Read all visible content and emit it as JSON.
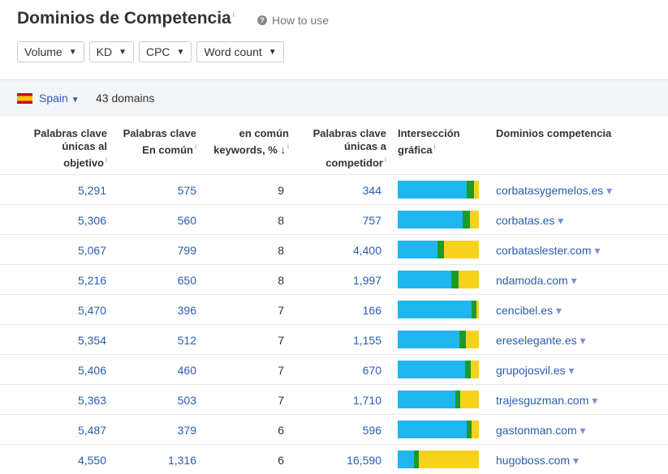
{
  "header": {
    "title": "Dominios de Competencia",
    "help": "How to use"
  },
  "filters": [
    "Volume",
    "KD",
    "CPC",
    "Word count"
  ],
  "country": "Spain",
  "domain_count": "43 domains",
  "table": {
    "columns": [
      "Palabras clave únicas al objetivo",
      "Palabras clave En común",
      "en común keywords, %",
      "Palabras clave únicas a competidor",
      "Intersección gráfica",
      "Dominios competencia"
    ],
    "rows": [
      {
        "target": {
          "value": 5291,
          "label": "5,291"
        },
        "common": 575,
        "percent": 9,
        "competitor": 344,
        "domain": "corbatasygemelos.es"
      },
      {
        "target": {
          "value": 5306,
          "label": "5,306"
        },
        "common": 560,
        "percent": 8,
        "competitor": 757,
        "domain": "corbatas.es"
      },
      {
        "target": {
          "value": 5067,
          "label": "5,067"
        },
        "common": 799,
        "percent": 8,
        "competitor": {
          "value": 4400,
          "label": "4,400"
        },
        "domain": "corbataslester.com"
      },
      {
        "target": {
          "value": 5216,
          "label": "5,216"
        },
        "common": 650,
        "percent": 8,
        "competitor": {
          "value": 1997,
          "label": "1,997"
        },
        "domain": "ndamoda.com"
      },
      {
        "target": {
          "value": 5470,
          "label": "5,470"
        },
        "common": 396,
        "percent": 7,
        "competitor": 166,
        "domain": "cencibel.es"
      },
      {
        "target": {
          "value": 5354,
          "label": "5,354"
        },
        "common": 512,
        "percent": 7,
        "competitor": {
          "value": 1155,
          "label": "1,155"
        },
        "domain": "ereselegante.es"
      },
      {
        "target": {
          "value": 5406,
          "label": "5,406"
        },
        "common": 460,
        "percent": 7,
        "competitor": 670,
        "domain": "grupojosvil.es"
      },
      {
        "target": {
          "value": 5363,
          "label": "5,363"
        },
        "common": 503,
        "percent": 7,
        "competitor": {
          "value": 1710,
          "label": "1,710"
        },
        "domain": "trajesguzman.com"
      },
      {
        "target": {
          "value": 5487,
          "label": "5,487"
        },
        "common": 379,
        "percent": 6,
        "competitor": 596,
        "domain": "gastonman.com"
      },
      {
        "target": {
          "value": 4550,
          "label": "4,550"
        },
        "common": {
          "value": 1316,
          "label": "1,316"
        },
        "percent": 6,
        "competitor": {
          "value": 16590,
          "label": "16,590"
        },
        "domain": "hugoboss.com"
      }
    ]
  }
}
